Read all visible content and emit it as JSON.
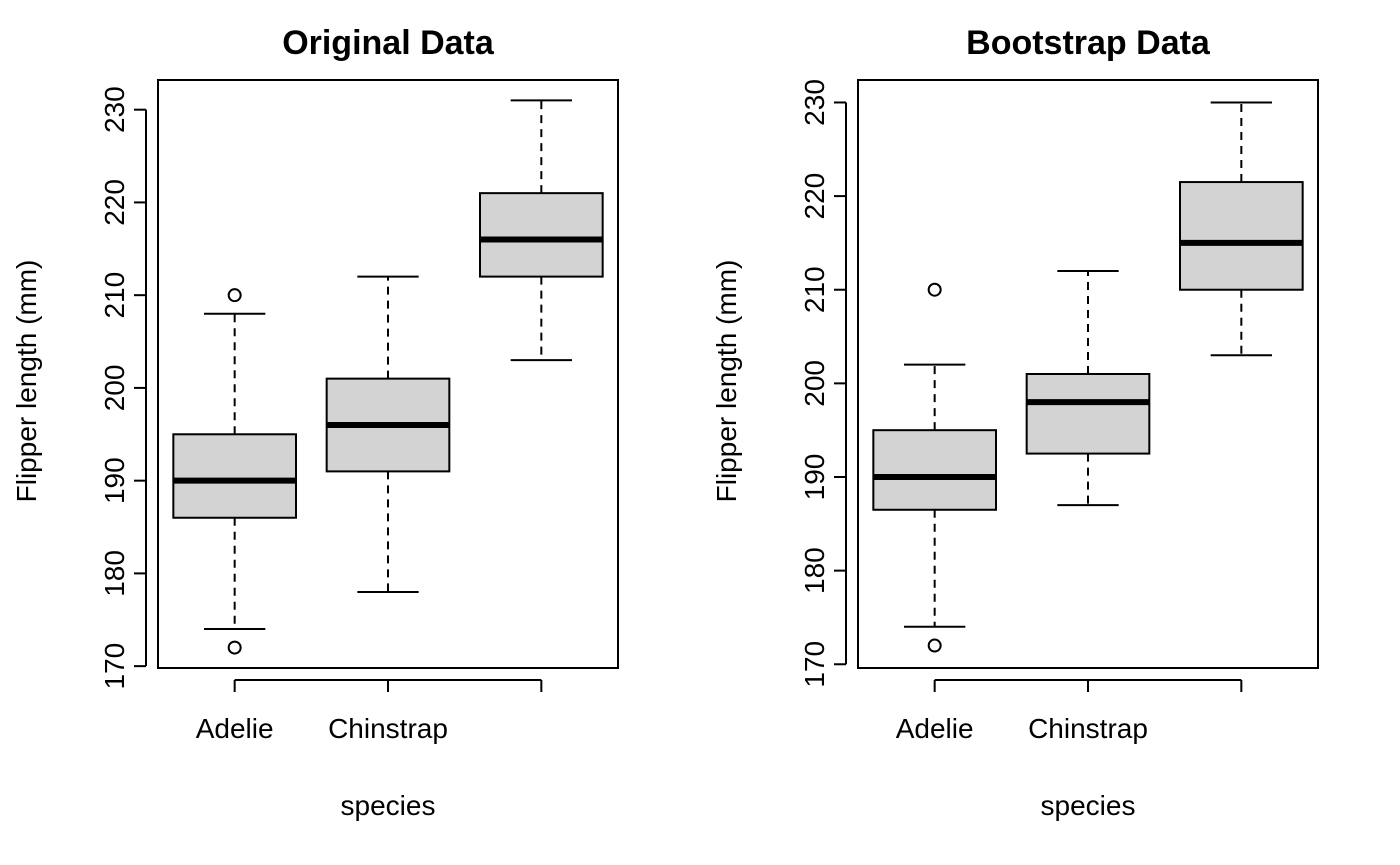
{
  "chart_data": [
    {
      "type": "boxplot",
      "title": "Original Data",
      "xlabel": "species",
      "ylabel": "Flipper length (mm)",
      "ylim": [
        169.8,
        233.2
      ],
      "yticks": [
        170,
        180,
        190,
        200,
        210,
        220,
        230
      ],
      "categories": [
        "Adelie",
        "Chinstrap",
        ""
      ],
      "boxes": [
        {
          "whisker_low": 174,
          "q1": 186,
          "median": 190,
          "q3": 195,
          "whisker_high": 208,
          "outliers": [
            210,
            172
          ]
        },
        {
          "whisker_low": 178,
          "q1": 191,
          "median": 196,
          "q3": 201,
          "whisker_high": 212,
          "outliers": []
        },
        {
          "whisker_low": 203,
          "q1": 212,
          "median": 216,
          "q3": 221,
          "whisker_high": 231,
          "outliers": []
        }
      ],
      "box_fill": "#d3d3d3",
      "grid": false,
      "legend": "none"
    },
    {
      "type": "boxplot",
      "title": "Bootstrap Data",
      "xlabel": "species",
      "ylabel": "Flipper length (mm)",
      "ylim": [
        169.6,
        232.4
      ],
      "yticks": [
        170,
        180,
        190,
        200,
        210,
        220,
        230
      ],
      "categories": [
        "Adelie",
        "Chinstrap",
        ""
      ],
      "boxes": [
        {
          "whisker_low": 174,
          "q1": 186.5,
          "median": 190,
          "q3": 195,
          "whisker_high": 202,
          "outliers": [
            210,
            172
          ]
        },
        {
          "whisker_low": 187,
          "q1": 192.5,
          "median": 198,
          "q3": 201,
          "whisker_high": 212,
          "outliers": []
        },
        {
          "whisker_low": 203,
          "q1": 210,
          "median": 215,
          "q3": 221.5,
          "whisker_high": 230,
          "outliers": []
        }
      ],
      "box_fill": "#d3d3d3",
      "grid": false,
      "legend": "none"
    }
  ]
}
